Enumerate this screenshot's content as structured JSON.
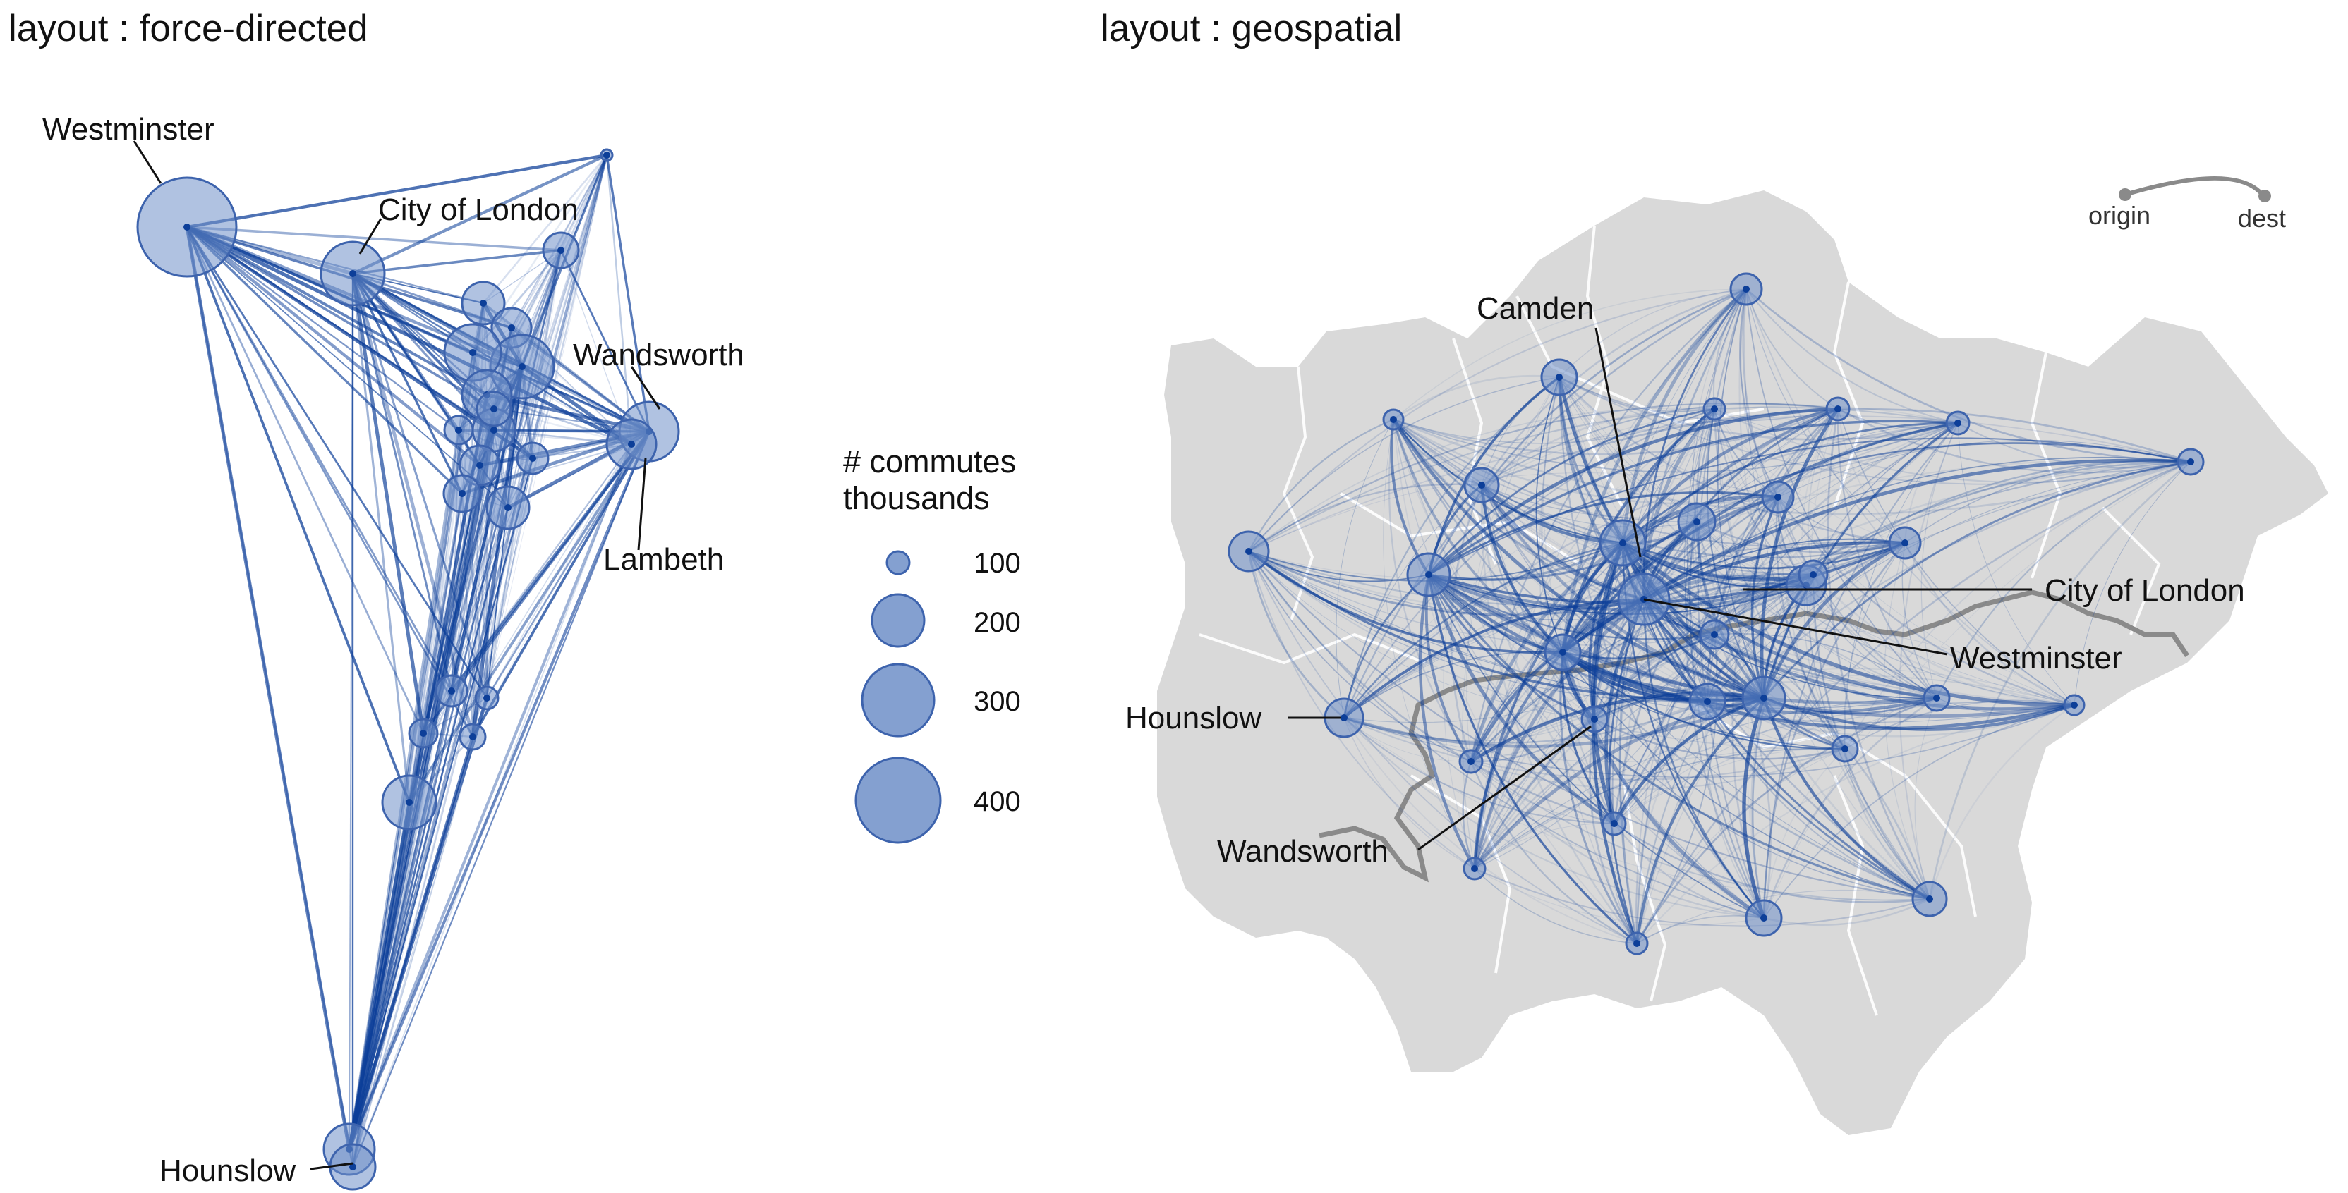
{
  "panels": {
    "force": {
      "title": "layout : force-directed"
    },
    "geo": {
      "title": "layout : geospatial"
    }
  },
  "force_labels": {
    "westminster": "Westminster",
    "city_of_london": "City of London",
    "wandsworth": "Wandsworth",
    "lambeth": "Lambeth",
    "hounslow": "Hounslow"
  },
  "geo_labels": {
    "camden": "Camden",
    "city_of_london": "City of London",
    "westminster": "Westminster",
    "hounslow": "Hounslow",
    "wandsworth": "Wandsworth"
  },
  "legend": {
    "title_line1": "# commutes",
    "title_line2": "thousands",
    "values": [
      "100",
      "200",
      "300",
      "400"
    ]
  },
  "od_key": {
    "origin": "origin",
    "dest": "dest"
  },
  "colors": {
    "flow": "#0d3f99",
    "node_fill": "#6f8fc8",
    "node_stroke": "#3d63ad",
    "map_fill": "#d9d9d9",
    "river": "#8a8a8a"
  }
}
